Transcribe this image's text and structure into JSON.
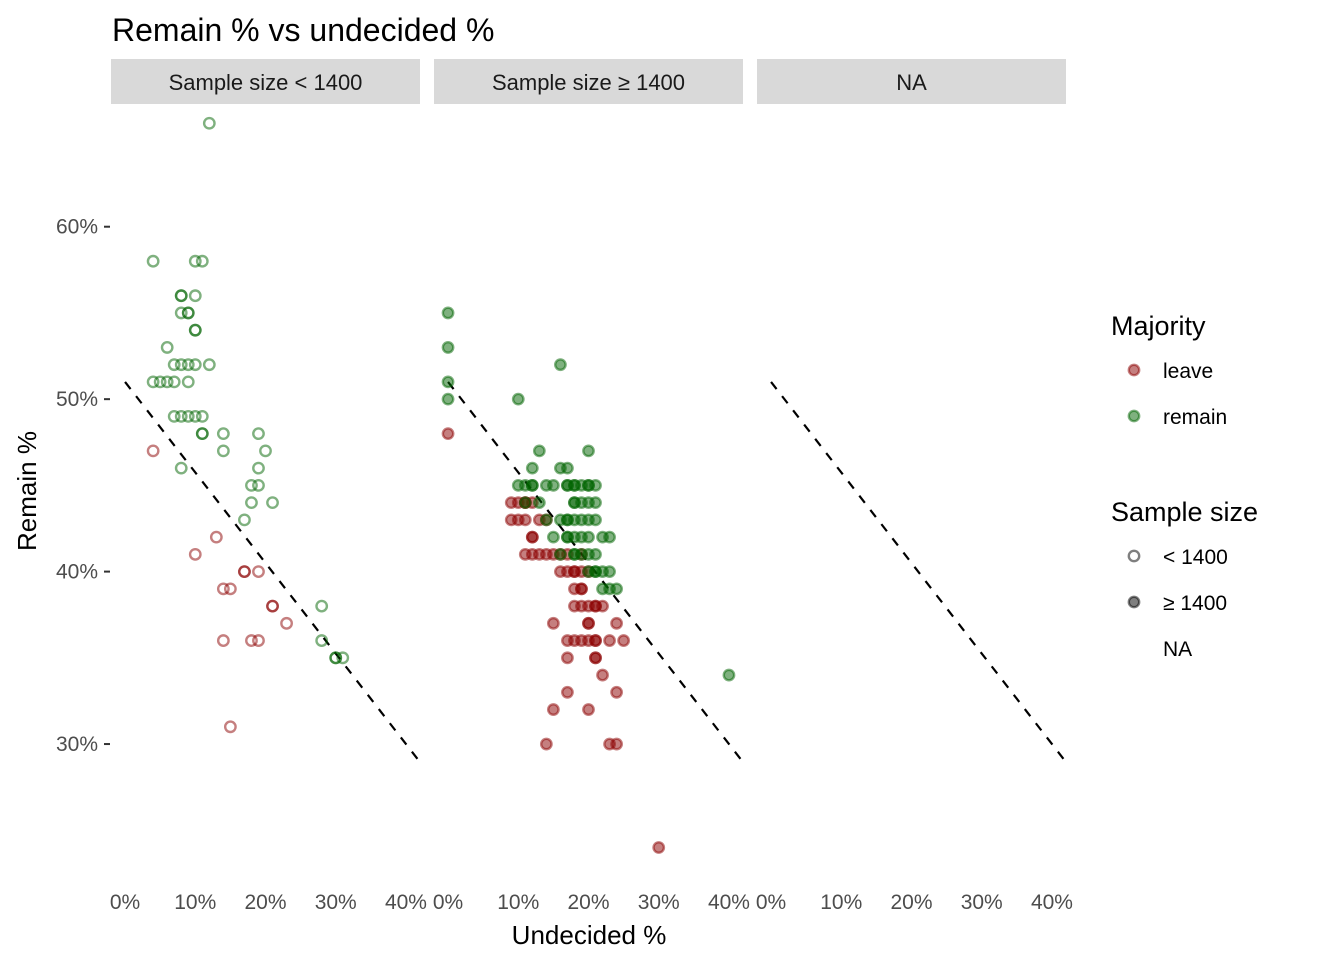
{
  "chart_data": {
    "type": "scatter",
    "title": "Remain % vs undecided %",
    "xlabel": "Undecided %",
    "ylabel": "Remain %",
    "xlim": [
      -2,
      42
    ],
    "ylim": [
      22,
      67
    ],
    "x_ticks": [
      0,
      10,
      20,
      30,
      40
    ],
    "x_tick_labels": [
      "0%",
      "10%",
      "20%",
      "30%",
      "40%"
    ],
    "y_ticks": [
      30,
      40,
      50,
      60
    ],
    "y_tick_labels": [
      "30%",
      "40%",
      "50%",
      "60%"
    ],
    "grid": false,
    "reference_line": {
      "intercept": 51,
      "slope": -0.525,
      "style": "dashed"
    },
    "facets": [
      {
        "label": "Sample size < 1400",
        "sample": "lt"
      },
      {
        "label": "Sample size ≥ 1400",
        "sample": "ge"
      },
      {
        "label": "NA",
        "sample": "na"
      }
    ],
    "colors": {
      "leave": "#8b0000",
      "remain": "#006400",
      "strip": "#d9d9d9"
    },
    "legend": {
      "position": "right",
      "majority": {
        "title": "Majority",
        "items": [
          {
            "label": "leave",
            "key": "leave"
          },
          {
            "label": "remain",
            "key": "remain"
          }
        ]
      },
      "sample_size": {
        "title": "Sample size",
        "items": [
          {
            "label": "< 1400",
            "fill": false
          },
          {
            "label": "≥ 1400",
            "fill": true
          },
          {
            "label": "NA",
            "fill": null
          }
        ]
      }
    },
    "series": [
      {
        "facet": 0,
        "name": "leave",
        "points": [
          [
            4,
            47
          ],
          [
            10,
            41
          ],
          [
            13,
            42
          ],
          [
            14,
            39
          ],
          [
            14,
            36
          ],
          [
            15,
            39
          ],
          [
            15,
            31
          ],
          [
            17,
            40
          ],
          [
            17,
            40
          ],
          [
            18,
            36
          ],
          [
            19,
            40
          ],
          [
            19,
            36
          ],
          [
            21,
            38
          ],
          [
            21,
            38
          ],
          [
            23,
            37
          ]
        ]
      },
      {
        "facet": 0,
        "name": "remain",
        "points": [
          [
            4,
            58
          ],
          [
            4,
            51
          ],
          [
            5,
            51
          ],
          [
            6,
            51
          ],
          [
            6,
            53
          ],
          [
            7,
            51
          ],
          [
            7,
            52
          ],
          [
            7,
            49
          ],
          [
            8,
            56
          ],
          [
            8,
            56
          ],
          [
            8,
            55
          ],
          [
            8,
            52
          ],
          [
            8,
            49
          ],
          [
            8,
            46
          ],
          [
            9,
            55
          ],
          [
            9,
            55
          ],
          [
            9,
            52
          ],
          [
            9,
            51
          ],
          [
            9,
            49
          ],
          [
            10,
            58
          ],
          [
            10,
            56
          ],
          [
            10,
            54
          ],
          [
            10,
            54
          ],
          [
            10,
            52
          ],
          [
            10,
            49
          ],
          [
            11,
            58
          ],
          [
            11,
            49
          ],
          [
            11,
            48
          ],
          [
            11,
            48
          ],
          [
            12,
            66
          ],
          [
            12,
            52
          ],
          [
            14,
            48
          ],
          [
            14,
            47
          ],
          [
            17,
            43
          ],
          [
            18,
            45
          ],
          [
            18,
            44
          ],
          [
            19,
            48
          ],
          [
            19,
            46
          ],
          [
            19,
            45
          ],
          [
            20,
            47
          ],
          [
            21,
            44
          ],
          [
            28,
            38
          ],
          [
            28,
            36
          ],
          [
            30,
            35
          ],
          [
            30,
            35
          ],
          [
            31,
            35
          ]
        ]
      },
      {
        "facet": 1,
        "name": "leave",
        "points": [
          [
            0,
            48
          ],
          [
            9,
            44
          ],
          [
            9,
            43
          ],
          [
            10,
            44
          ],
          [
            10,
            43
          ],
          [
            11,
            44
          ],
          [
            11,
            44
          ],
          [
            11,
            43
          ],
          [
            11,
            41
          ],
          [
            12,
            44
          ],
          [
            12,
            42
          ],
          [
            12,
            42
          ],
          [
            12,
            41
          ],
          [
            13,
            43
          ],
          [
            13,
            41
          ],
          [
            14,
            43
          ],
          [
            14,
            41
          ],
          [
            14,
            30
          ],
          [
            15,
            41
          ],
          [
            15,
            37
          ],
          [
            15,
            32
          ],
          [
            16,
            41
          ],
          [
            16,
            40
          ],
          [
            17,
            41
          ],
          [
            17,
            40
          ],
          [
            17,
            36
          ],
          [
            17,
            35
          ],
          [
            17,
            33
          ],
          [
            18,
            40
          ],
          [
            18,
            40
          ],
          [
            18,
            39
          ],
          [
            18,
            38
          ],
          [
            18,
            36
          ],
          [
            19,
            41
          ],
          [
            19,
            40
          ],
          [
            19,
            39
          ],
          [
            19,
            39
          ],
          [
            19,
            38
          ],
          [
            19,
            36
          ],
          [
            20,
            40
          ],
          [
            20,
            38
          ],
          [
            20,
            37
          ],
          [
            20,
            37
          ],
          [
            20,
            36
          ],
          [
            20,
            32
          ],
          [
            21,
            38
          ],
          [
            21,
            38
          ],
          [
            21,
            36
          ],
          [
            21,
            36
          ],
          [
            21,
            35
          ],
          [
            21,
            35
          ],
          [
            22,
            38
          ],
          [
            22,
            34
          ],
          [
            23,
            36
          ],
          [
            23,
            30
          ],
          [
            24,
            37
          ],
          [
            24,
            33
          ],
          [
            24,
            30
          ],
          [
            25,
            36
          ],
          [
            30,
            24
          ]
        ]
      },
      {
        "facet": 1,
        "name": "remain",
        "points": [
          [
            0,
            55
          ],
          [
            0,
            53
          ],
          [
            0,
            51
          ],
          [
            0,
            50
          ],
          [
            10,
            50
          ],
          [
            10,
            45
          ],
          [
            11,
            45
          ],
          [
            11,
            44
          ],
          [
            12,
            46
          ],
          [
            12,
            45
          ],
          [
            12,
            45
          ],
          [
            13,
            47
          ],
          [
            13,
            44
          ],
          [
            14,
            45
          ],
          [
            14,
            43
          ],
          [
            15,
            45
          ],
          [
            15,
            42
          ],
          [
            16,
            52
          ],
          [
            16,
            46
          ],
          [
            16,
            43
          ],
          [
            16,
            41
          ],
          [
            17,
            46
          ],
          [
            17,
            45
          ],
          [
            17,
            45
          ],
          [
            17,
            43
          ],
          [
            17,
            43
          ],
          [
            17,
            42
          ],
          [
            17,
            42
          ],
          [
            18,
            45
          ],
          [
            18,
            45
          ],
          [
            18,
            44
          ],
          [
            18,
            44
          ],
          [
            18,
            43
          ],
          [
            18,
            42
          ],
          [
            18,
            41
          ],
          [
            18,
            41
          ],
          [
            19,
            45
          ],
          [
            19,
            44
          ],
          [
            19,
            43
          ],
          [
            19,
            42
          ],
          [
            19,
            41
          ],
          [
            20,
            47
          ],
          [
            20,
            45
          ],
          [
            20,
            45
          ],
          [
            20,
            44
          ],
          [
            20,
            43
          ],
          [
            20,
            42
          ],
          [
            20,
            41
          ],
          [
            20,
            40
          ],
          [
            21,
            45
          ],
          [
            21,
            44
          ],
          [
            21,
            43
          ],
          [
            21,
            41
          ],
          [
            21,
            40
          ],
          [
            21,
            40
          ],
          [
            22,
            42
          ],
          [
            22,
            40
          ],
          [
            22,
            39
          ],
          [
            23,
            42
          ],
          [
            23,
            40
          ],
          [
            23,
            39
          ],
          [
            24,
            39
          ],
          [
            40,
            34
          ]
        ]
      }
    ]
  }
}
